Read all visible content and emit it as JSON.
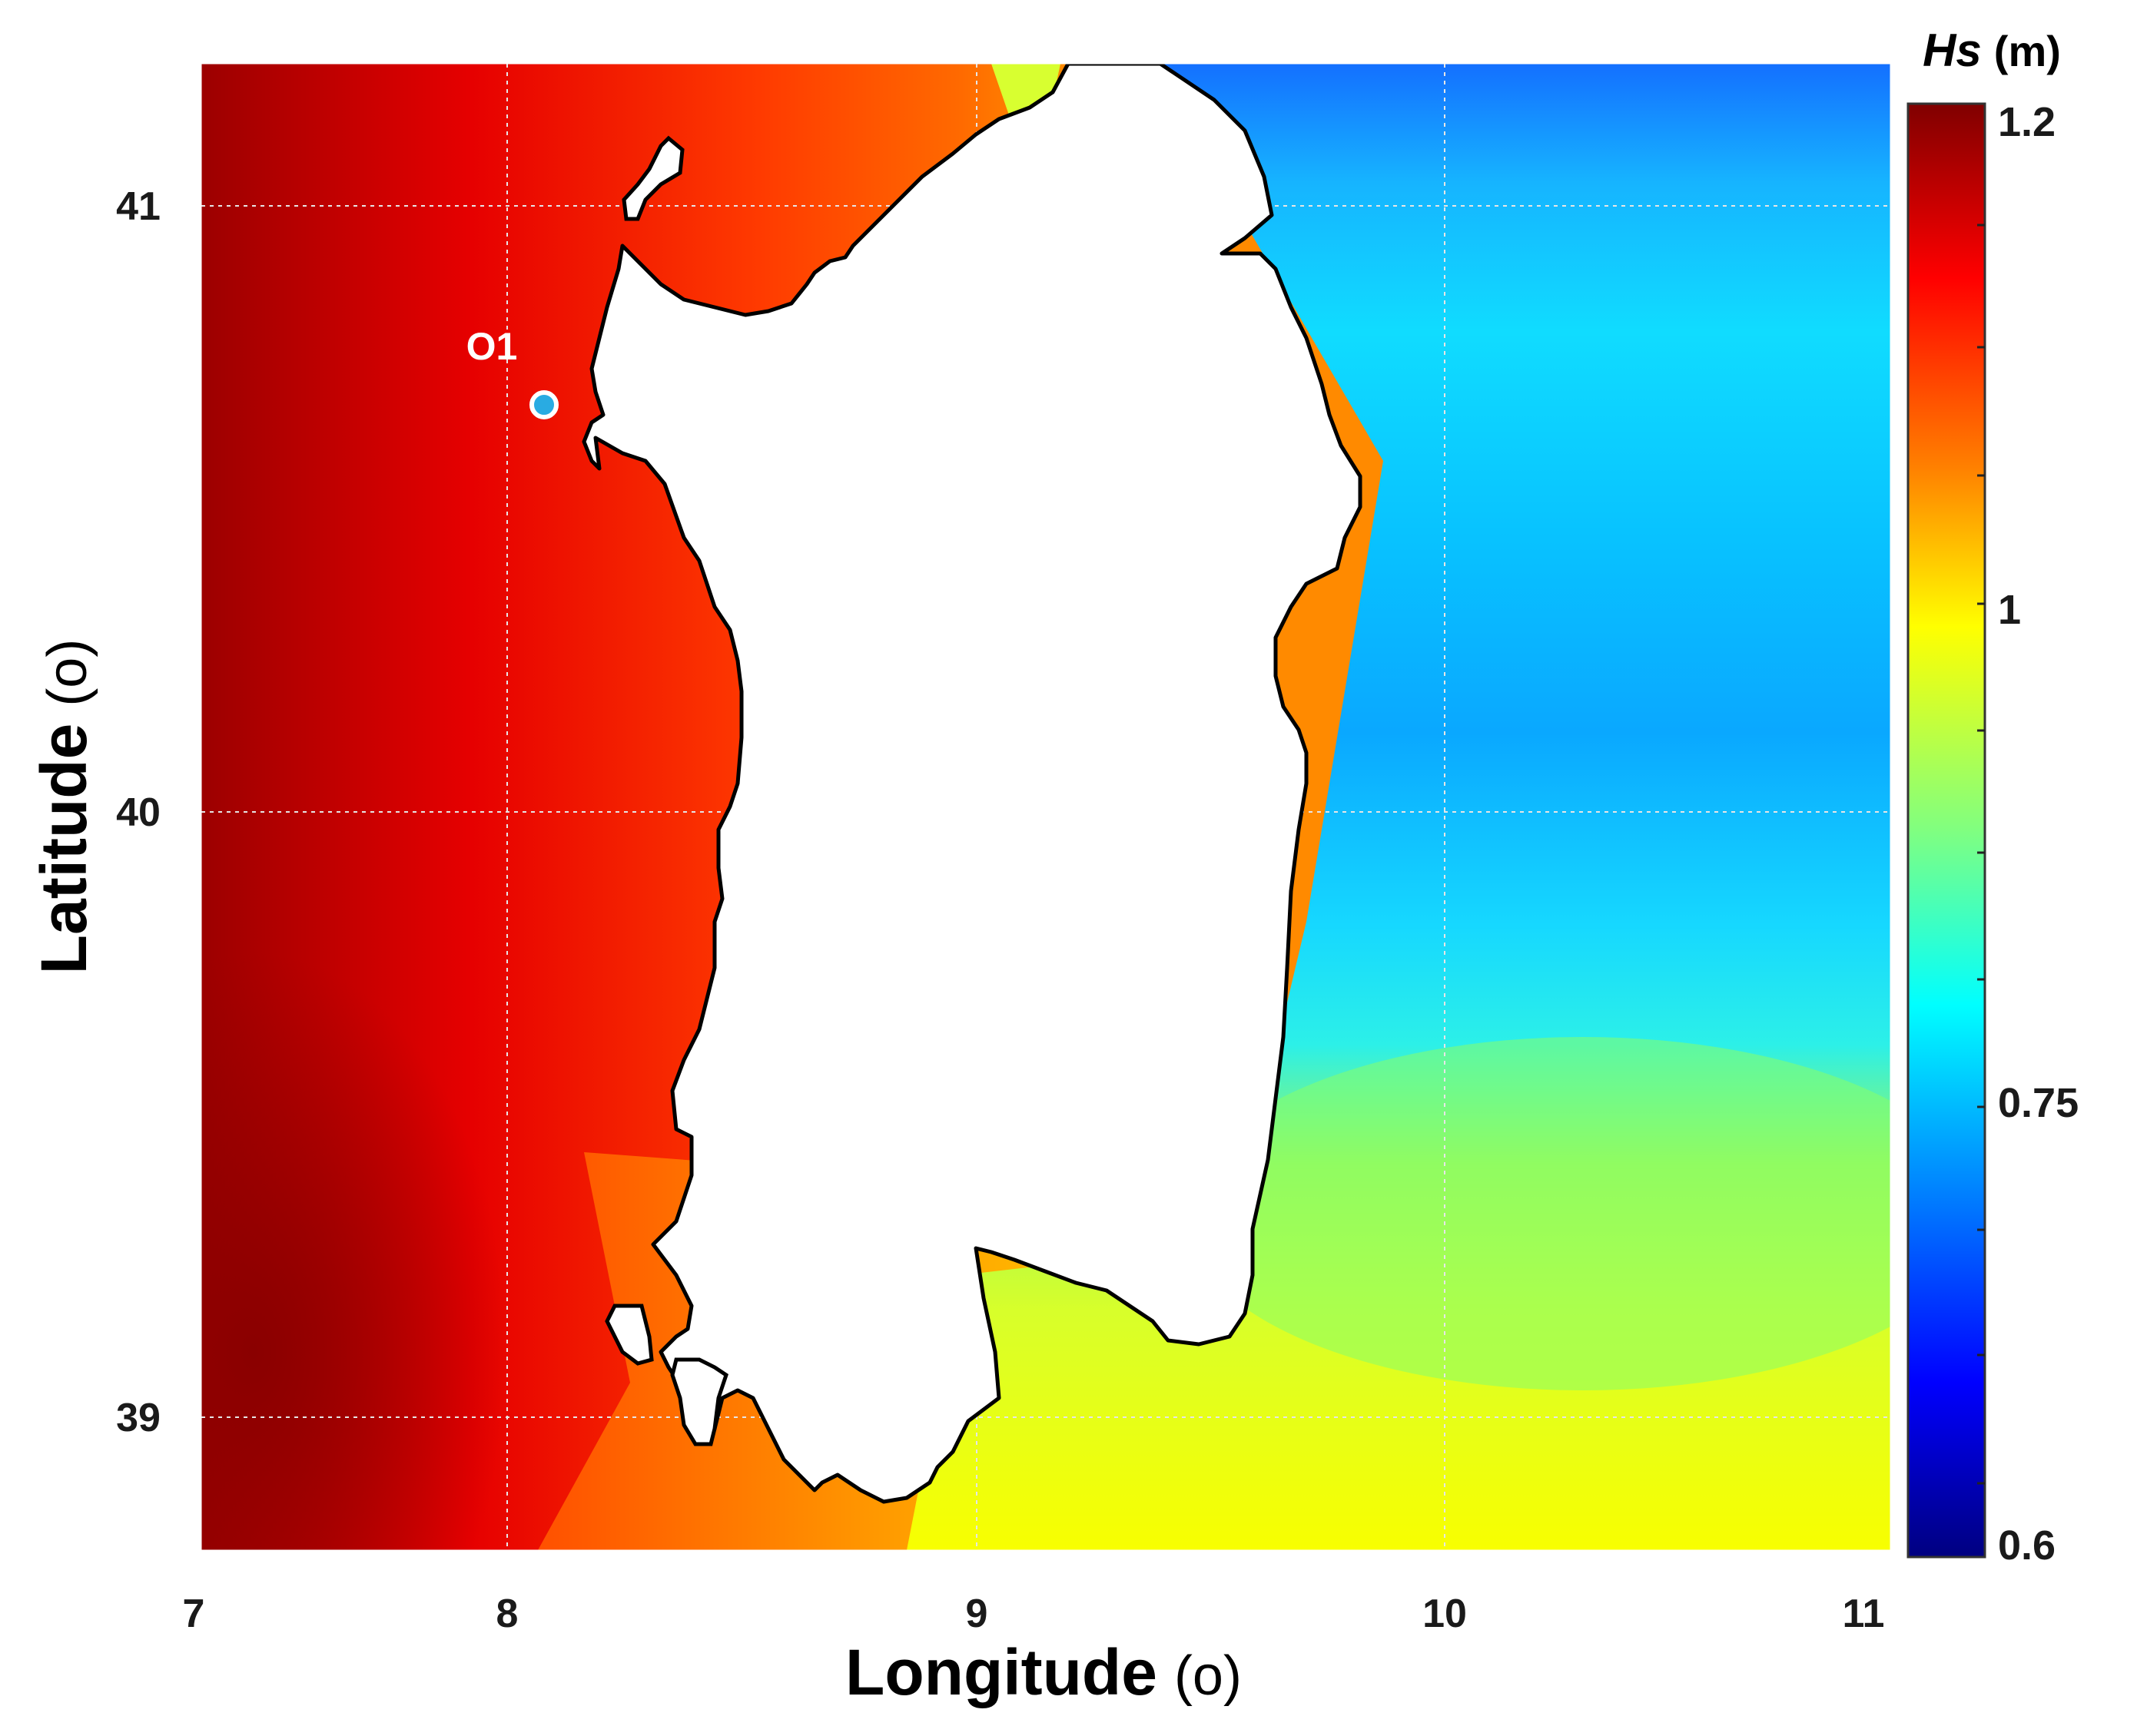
{
  "map": {
    "x_axis": {
      "label": "Longitude",
      "unit": "(o)",
      "ticks": [
        "7",
        "8",
        "9",
        "10",
        "11"
      ]
    },
    "y_axis": {
      "label": "Latitude",
      "unit": "(o)",
      "ticks": [
        "41",
        "40",
        "39"
      ]
    },
    "station": {
      "label": "O1",
      "color": "#29abe2",
      "outline": "#ffffff"
    },
    "land_color": "#ffffff",
    "coast_color": "#000000",
    "grid_color": "#e4e4e4"
  },
  "colorbar": {
    "title_italic": "Hs",
    "title_unit": "(m)",
    "tick_labels": [
      "1.2",
      "1",
      "0.75",
      "0.6"
    ],
    "range": [
      0.6,
      1.2
    ],
    "colormap": "jet"
  }
}
